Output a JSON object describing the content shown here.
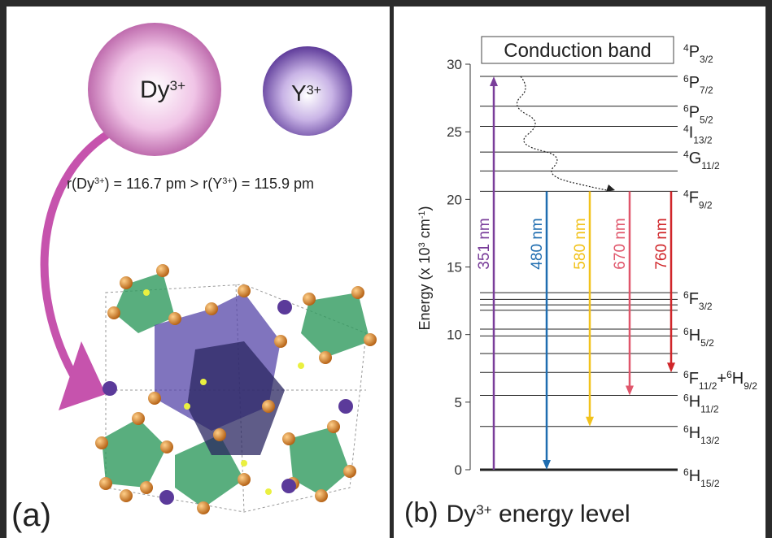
{
  "panel_a": {
    "label": "(a)",
    "ion_dy": {
      "symbol": "Dy",
      "charge": "3+"
    },
    "ion_y": {
      "symbol": "Y",
      "charge": "3+"
    },
    "radius_text": [
      "r(Dy",
      "3+",
      ") = 116.7 pm > r(Y",
      "3+",
      ") = 115.9 pm"
    ]
  },
  "panel_b": {
    "label": "(b)",
    "title": [
      "Dy",
      "3+",
      " energy level"
    ],
    "ylabel": [
      "Energy (x 10",
      "3",
      " cm",
      "-1",
      ")"
    ],
    "ylim": [
      0,
      30
    ],
    "yticks": [
      0,
      5,
      10,
      15,
      20,
      25,
      30
    ],
    "conduction_band": {
      "text": "Conduction band",
      "label": [
        {
          "sup": "4",
          "term": "P",
          "sub": "3/2"
        }
      ]
    },
    "levels": [
      {
        "energy": 29.1,
        "label": [
          {
            "sup": "6",
            "term": "P",
            "sub": "7/2"
          }
        ]
      },
      {
        "energy": 26.9,
        "label": [
          {
            "sup": "6",
            "term": "P",
            "sub": "5/2"
          }
        ]
      },
      {
        "energy": 25.4,
        "label": [
          {
            "sup": "4",
            "term": "I",
            "sub": "13/2"
          }
        ]
      },
      {
        "energy": 23.5,
        "label": [
          {
            "sup": "4",
            "term": "G",
            "sub": "11/2"
          }
        ]
      },
      {
        "energy": 22.1
      },
      {
        "energy": 20.6,
        "label": [
          {
            "sup": "4",
            "term": "F",
            "sub": "9/2"
          }
        ]
      },
      {
        "energy": 13.1,
        "label": [
          {
            "sup": "6",
            "term": "F",
            "sub": "3/2"
          }
        ]
      },
      {
        "energy": 12.6
      },
      {
        "energy": 12.2
      },
      {
        "energy": 11.8
      },
      {
        "energy": 10.4,
        "label": [
          {
            "sup": "6",
            "term": "H",
            "sub": "5/2"
          }
        ]
      },
      {
        "energy": 9.9
      },
      {
        "energy": 8.6
      },
      {
        "energy": 7.2,
        "label": [
          {
            "sup": "6",
            "term": "F",
            "sub": "11/2"
          },
          {
            "term": "+"
          },
          {
            "sup": "6",
            "term": "H",
            "sub": "9/2"
          }
        ]
      },
      {
        "energy": 5.5,
        "label": [
          {
            "sup": "6",
            "term": "H",
            "sub": "11/2"
          }
        ]
      },
      {
        "energy": 3.2,
        "label": [
          {
            "sup": "6",
            "term": "H",
            "sub": "13/2"
          }
        ]
      },
      {
        "energy": 0,
        "label": [
          {
            "sup": "6",
            "term": "H",
            "sub": "15/2"
          }
        ]
      }
    ],
    "transitions": [
      {
        "label": "351 nm",
        "from": 0,
        "to": 29.1,
        "color": "#7a3e9a"
      },
      {
        "label": "480 nm",
        "from": 20.6,
        "to": 0,
        "color": "#1f6db0"
      },
      {
        "label": "580 nm",
        "from": 20.6,
        "to": 3.2,
        "color": "#f2c21b"
      },
      {
        "label": "670 nm",
        "from": 20.6,
        "to": 5.5,
        "color": "#e0566b"
      },
      {
        "label": "760 nm",
        "from": 20.6,
        "to": 7.2,
        "color": "#d0262a"
      }
    ]
  }
}
